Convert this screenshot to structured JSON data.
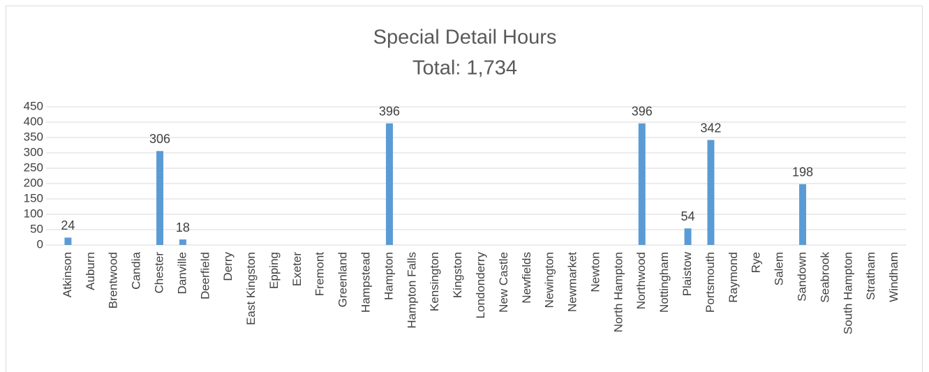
{
  "chart_data": {
    "type": "bar",
    "title": "Special Detail Hours",
    "subtitle": "Total: 1,734",
    "categories": [
      "Atkinson",
      "Auburn",
      "Brentwood",
      "Candia",
      "Chester",
      "Danville",
      "Deerfield",
      "Derry",
      "East Kingston",
      "Epping",
      "Exeter",
      "Fremont",
      "Greenland",
      "Hampstead",
      "Hampton",
      "Hampton Falls",
      "Kensington",
      "Kingston",
      "Londonderry",
      "New Castle",
      "Newfields",
      "Newington",
      "Newmarket",
      "Newton",
      "North Hampton",
      "Northwood",
      "Nottingham",
      "Plaistow",
      "Portsmouth",
      "Raymond",
      "Rye",
      "Salem",
      "Sandown",
      "Seabrook",
      "South Hampton",
      "Stratham",
      "Windham"
    ],
    "values": [
      24,
      0,
      0,
      0,
      306,
      18,
      0,
      0,
      0,
      0,
      0,
      0,
      0,
      0,
      396,
      0,
      0,
      0,
      0,
      0,
      0,
      0,
      0,
      0,
      0,
      396,
      0,
      54,
      342,
      0,
      0,
      0,
      198,
      0,
      0,
      0,
      0
    ],
    "color": "#5b9bd5",
    "ylim": [
      0,
      450
    ],
    "yticks": [
      0,
      50,
      100,
      150,
      200,
      250,
      300,
      350,
      400,
      450
    ],
    "grid": true
  }
}
